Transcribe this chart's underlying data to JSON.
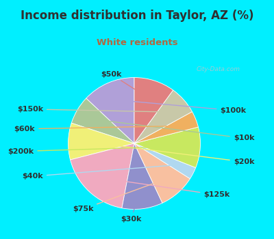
{
  "title": "Income distribution in Taylor, AZ (%)",
  "subtitle": "White residents",
  "labels": [
    "$100k",
    "$10k",
    "$20k",
    "$125k",
    "$30k",
    "$75k",
    "$40k",
    "$200k",
    "$60k",
    "$150k",
    "$50k"
  ],
  "sizes": [
    13,
    7,
    9,
    18,
    10,
    9,
    3,
    10,
    4,
    7,
    10
  ],
  "colors": [
    "#b0a0d8",
    "#aac898",
    "#f0f078",
    "#f0aac0",
    "#9090cc",
    "#f8c0a0",
    "#b0d8f0",
    "#c8e860",
    "#f0b060",
    "#c8c8a8",
    "#e08080"
  ],
  "background_top": "#00efff",
  "background_chart_tl": "#e0f5e8",
  "background_chart_br": "#ffffff",
  "title_color": "#303030",
  "subtitle_color": "#b06840",
  "watermark": "City-Data.com",
  "label_fontsize": 8,
  "title_fontsize": 12,
  "subtitle_fontsize": 9.5,
  "startangle": 90,
  "label_color": "#303030"
}
